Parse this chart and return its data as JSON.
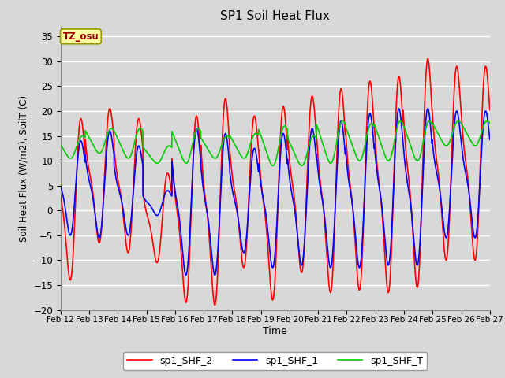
{
  "title": "SP1 Soil Heat Flux",
  "xlabel": "Time",
  "ylabel": "Soil Heat Flux (W/m2), SoilT (C)",
  "ylim": [
    -20,
    37
  ],
  "yticks": [
    -20,
    -15,
    -10,
    -5,
    0,
    5,
    10,
    15,
    20,
    25,
    30,
    35
  ],
  "xtick_labels": [
    "Feb 12",
    "Feb 13",
    "Feb 14",
    "Feb 15",
    "Feb 16",
    "Feb 17",
    "Feb 18",
    "Feb 19",
    "Feb 20",
    "Feb 21",
    "Feb 22",
    "Feb 23",
    "Feb 24",
    "Feb 25",
    "Feb 26",
    "Feb 27"
  ],
  "colors": {
    "sp1_SHF_2": "#FF0000",
    "sp1_SHF_1": "#0000FF",
    "sp1_SHF_T": "#00CC00"
  },
  "legend_labels": [
    "sp1_SHF_2",
    "sp1_SHF_1",
    "sp1_SHF_T"
  ],
  "bg_color": "#D8D8D8",
  "plot_bg_color": "#D8D8D8",
  "grid_color": "#FFFFFF",
  "tz_label": "TZ_osu",
  "tz_box_color": "#FFFFA0",
  "tz_border_color": "#999900",
  "line_width": 1.2,
  "shf2_data": [
    -10.0,
    18.5,
    -14.0,
    20.5,
    -6.5,
    18.5,
    -8.5,
    7.5,
    -10.5,
    19.0,
    -18.5,
    22.5,
    -19.0,
    19.0,
    -11.5,
    21.0,
    -18.0,
    23.0,
    -12.5,
    24.5,
    -16.5,
    26.0,
    -16.0,
    27.0,
    -16.5,
    30.5,
    -15.5,
    29.0,
    -10.0
  ],
  "shf1_data": [
    -5.0,
    14.0,
    -5.0,
    16.0,
    -5.5,
    13.0,
    -5.0,
    4.0,
    -1.0,
    16.5,
    -13.0,
    15.5,
    -13.0,
    12.5,
    -8.5,
    15.5,
    -11.5,
    16.5,
    -11.0,
    18.0,
    -11.5,
    19.5,
    -11.5,
    20.5,
    -11.0,
    20.5,
    -11.0,
    20.0,
    -5.5
  ],
  "shft_data": [
    11.0,
    15.0,
    12.0,
    16.5,
    11.5,
    16.5,
    10.5,
    13.0,
    9.5,
    16.5,
    9.5,
    15.0,
    10.5,
    15.5,
    10.5,
    17.0,
    9.0,
    15.0,
    9.0,
    18.0,
    9.5,
    17.5,
    10.0,
    18.0,
    10.0,
    13.0
  ],
  "peak_phase": 0.58,
  "trough_phase": 0.08
}
